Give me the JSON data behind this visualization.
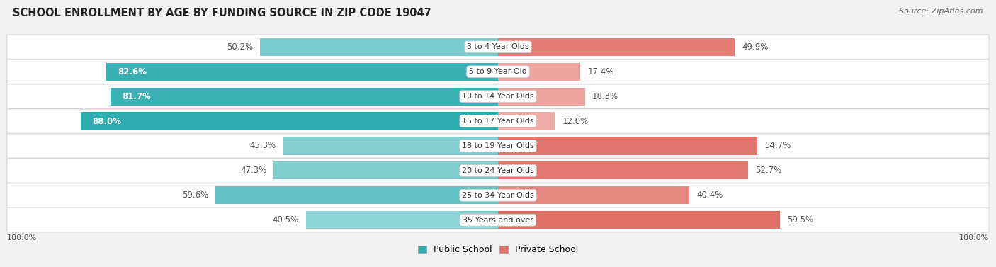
{
  "title": "SCHOOL ENROLLMENT BY AGE BY FUNDING SOURCE IN ZIP CODE 19047",
  "source": "Source: ZipAtlas.com",
  "categories": [
    "3 to 4 Year Olds",
    "5 to 9 Year Old",
    "10 to 14 Year Olds",
    "15 to 17 Year Olds",
    "18 to 19 Year Olds",
    "20 to 24 Year Olds",
    "25 to 34 Year Olds",
    "35 Years and over"
  ],
  "public_values": [
    50.2,
    82.6,
    81.7,
    88.0,
    45.3,
    47.3,
    59.6,
    40.5
  ],
  "private_values": [
    49.9,
    17.4,
    18.3,
    12.0,
    54.7,
    52.7,
    40.4,
    59.5
  ],
  "public_color_dark": "#2EADB0",
  "public_color_light": "#8ED3D5",
  "private_color_dark": "#E07068",
  "private_color_light": "#F0ADA8",
  "bg_color": "#F2F2F2",
  "row_bg": "#FFFFFF",
  "axis_label_left": "100.0%",
  "axis_label_right": "100.0%",
  "legend_public": "Public School",
  "legend_private": "Private School",
  "title_fontsize": 10.5,
  "source_fontsize": 8,
  "bar_label_fontsize": 8.5,
  "cat_label_fontsize": 8
}
